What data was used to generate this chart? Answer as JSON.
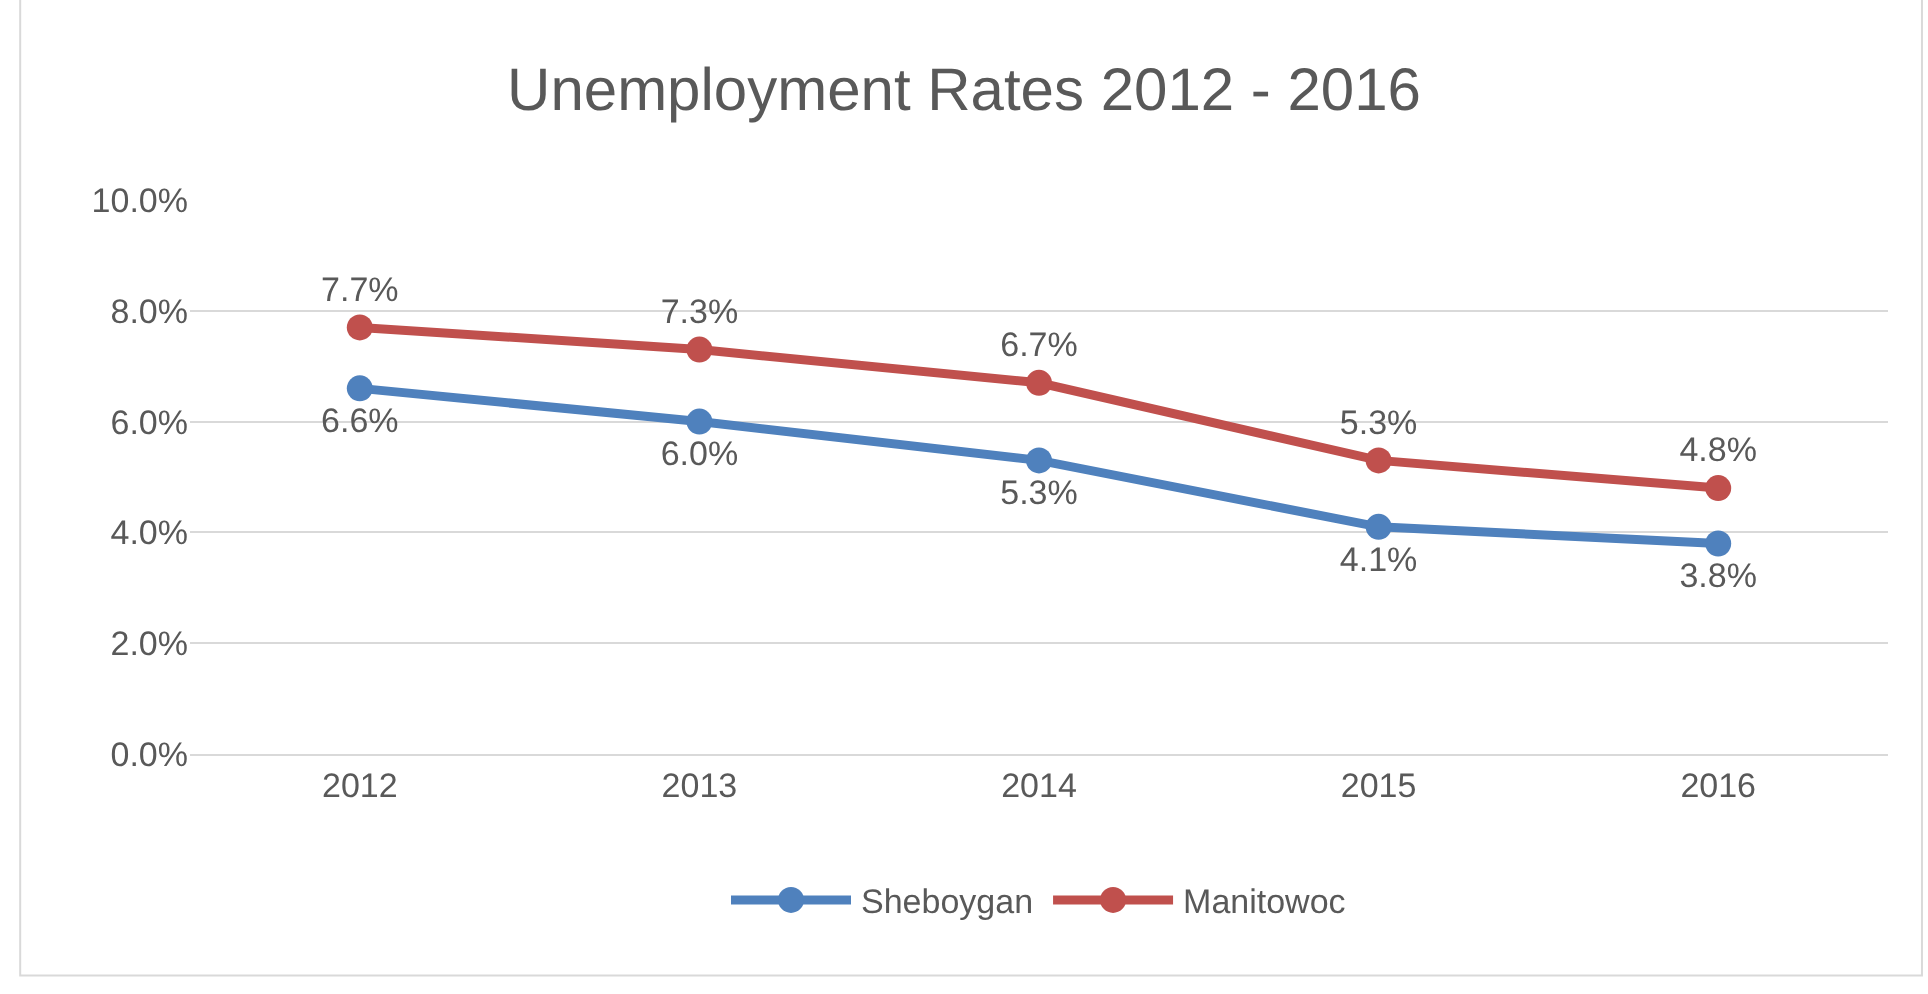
{
  "chart_data": {
    "type": "line",
    "title": "Unemployment Rates 2012 - 2016",
    "categories": [
      "2012",
      "2013",
      "2014",
      "2015",
      "2016"
    ],
    "series": [
      {
        "name": "Sheboygan",
        "color": "#4f81bd",
        "values": [
          6.6,
          6.0,
          5.3,
          4.1,
          3.8
        ],
        "value_labels": [
          "6.6%",
          "6.0%",
          "5.3%",
          "4.1%",
          "3.8%"
        ]
      },
      {
        "name": "Manitowoc",
        "color": "#c0504d",
        "values": [
          7.7,
          7.3,
          6.7,
          5.3,
          4.8
        ],
        "value_labels": [
          "7.7%",
          "7.3%",
          "6.7%",
          "5.3%",
          "4.8%"
        ]
      }
    ],
    "ylim": [
      0,
      10
    ],
    "yticks": [
      {
        "value": 0,
        "label": "0.0%"
      },
      {
        "value": 2,
        "label": "2.0%"
      },
      {
        "value": 4,
        "label": "4.0%"
      },
      {
        "value": 6,
        "label": "6.0%"
      },
      {
        "value": 8,
        "label": "8.0%"
      },
      {
        "value": 10,
        "label": "10.0%"
      }
    ],
    "grid": "y",
    "legend": "bottom",
    "marker": "circle",
    "line_style": "solid"
  }
}
